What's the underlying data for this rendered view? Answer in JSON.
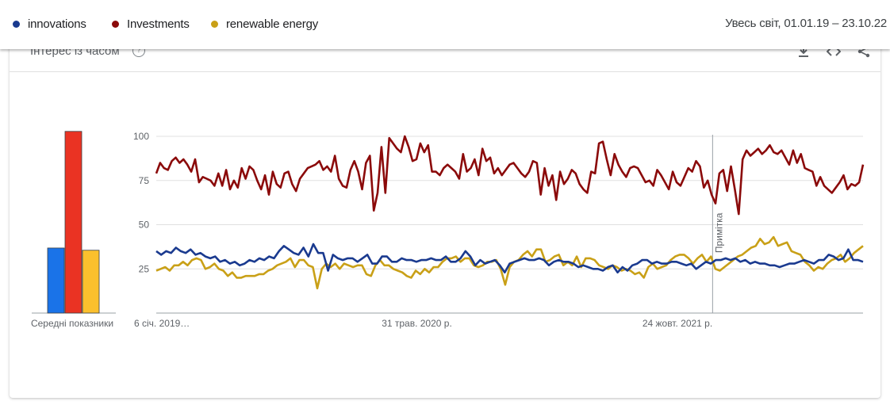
{
  "legend": {
    "items": [
      {
        "label": "innovations",
        "color": "#1a3a8f"
      },
      {
        "label": "Investments",
        "color": "#8b0a0a"
      },
      {
        "label": "renewable energy",
        "color": "#c9a017"
      }
    ],
    "range_label": "Увесь світ, 01.01.19 – 23.10.22"
  },
  "card": {
    "title": "Інтерес із часом",
    "help_icon": "help-circle-icon",
    "header_icons": [
      "download-icon",
      "embed-icon",
      "share-icon"
    ]
  },
  "chart_data": [
    {
      "type": "bar",
      "title": "",
      "xlabel": "Середні показники",
      "categories": [
        "innovations",
        "Investments",
        "renewable energy"
      ],
      "values": [
        29,
        81,
        28
      ],
      "colors": [
        "#1a73e8",
        "#ea3323",
        "#fbc02d"
      ],
      "ylim": [
        0,
        100
      ]
    },
    {
      "type": "line",
      "title": "",
      "xlabel": "",
      "ylabel": "",
      "ylim": [
        0,
        100
      ],
      "yticks": [
        25,
        50,
        75,
        100
      ],
      "grid": true,
      "x_range": [
        "2019-01-06",
        "2022-10-23"
      ],
      "x_tick_labels": [
        {
          "date": "2019-01-06",
          "label": "6 січ. 2019…"
        },
        {
          "date": "2020-05-31",
          "label": "31 трав. 2020 р."
        },
        {
          "date": "2021-10-24",
          "label": "24 жовт. 2021 р."
        }
      ],
      "annotation": {
        "date": "2022-01-01",
        "label": "Примітка"
      },
      "series": [
        {
          "name": "innovations",
          "color": "#1a3a8f",
          "values": [
            35,
            33,
            35,
            34,
            37,
            35,
            34,
            36,
            33,
            34,
            32,
            31,
            32,
            29,
            30,
            28,
            29,
            27,
            28,
            30,
            29,
            31,
            30,
            32,
            31,
            35,
            38,
            36,
            34,
            33,
            37,
            32,
            39,
            34,
            34,
            24,
            33,
            31,
            30,
            31,
            31,
            29,
            31,
            33,
            28,
            28,
            32,
            32,
            29,
            29,
            31,
            30,
            30,
            29,
            30,
            30,
            31,
            30,
            30,
            32,
            29,
            29,
            31,
            35,
            32,
            27,
            30,
            28,
            29,
            30,
            27,
            23,
            28,
            29,
            30,
            31,
            30,
            30,
            31,
            30,
            27,
            29,
            30,
            29,
            29,
            28,
            26,
            27,
            26,
            25,
            25,
            24,
            26,
            27,
            23,
            26,
            24,
            27,
            28,
            30,
            30,
            28,
            29,
            28,
            28,
            29,
            29,
            28,
            27,
            28,
            25,
            27,
            29,
            28,
            30,
            30,
            31,
            30,
            31,
            29,
            30,
            28,
            29,
            28,
            28,
            27,
            27,
            26,
            27,
            28,
            28,
            29,
            30,
            29,
            28,
            30,
            30,
            33,
            32,
            30,
            31,
            36,
            30,
            30,
            29
          ]
        },
        {
          "name": "Investments",
          "color": "#8b0a0a",
          "values": [
            79,
            85,
            82,
            81,
            86,
            88,
            85,
            87,
            84,
            80,
            87,
            74,
            77,
            76,
            75,
            72,
            79,
            72,
            81,
            70,
            75,
            71,
            82,
            76,
            83,
            81,
            75,
            70,
            78,
            67,
            80,
            73,
            71,
            79,
            80,
            73,
            69,
            76,
            79,
            82,
            83,
            84,
            86,
            81,
            83,
            80,
            89,
            76,
            72,
            71,
            81,
            86,
            80,
            70,
            85,
            89,
            58,
            68,
            94,
            68,
            99,
            96,
            93,
            91,
            100,
            94,
            86,
            87,
            96,
            91,
            95,
            80,
            80,
            78,
            82,
            84,
            82,
            80,
            76,
            90,
            80,
            82,
            87,
            78,
            93,
            86,
            88,
            79,
            82,
            78,
            81,
            84,
            85,
            82,
            79,
            77,
            80,
            86,
            85,
            67,
            82,
            72,
            78,
            64,
            80,
            73,
            76,
            81,
            79,
            73,
            70,
            68,
            80,
            79,
            96,
            97,
            87,
            78,
            90,
            84,
            80,
            77,
            82,
            83,
            82,
            78,
            74,
            75,
            72,
            81,
            78,
            74,
            70,
            80,
            74,
            72,
            77,
            82,
            80,
            86,
            83,
            71,
            75,
            67,
            62,
            79,
            81,
            69,
            83,
            70,
            56,
            87,
            92,
            89,
            91,
            93,
            90,
            92,
            95,
            91,
            90,
            92,
            88,
            84,
            92,
            85,
            90,
            82,
            81,
            80,
            72,
            77,
            72,
            70,
            68,
            71,
            74,
            78,
            70,
            73,
            72,
            74,
            84
          ]
        },
        {
          "name": "renewable energy",
          "color": "#c9a017",
          "values": [
            24,
            25,
            26,
            24,
            27,
            27,
            29,
            27,
            30,
            31,
            30,
            25,
            26,
            28,
            25,
            24,
            21,
            23,
            20,
            20,
            21,
            21,
            21,
            22,
            22,
            24,
            25,
            27,
            28,
            29,
            31,
            26,
            30,
            30,
            27,
            26,
            14,
            25,
            28,
            26,
            28,
            25,
            28,
            27,
            26,
            27,
            27,
            22,
            21,
            27,
            30,
            27,
            27,
            25,
            24,
            23,
            21,
            20,
            24,
            22,
            25,
            23,
            26,
            26,
            29,
            31,
            31,
            32,
            29,
            31,
            31,
            27,
            26,
            27,
            29,
            29,
            30,
            25,
            16,
            26,
            29,
            30,
            33,
            35,
            32,
            36,
            36,
            29,
            30,
            32,
            33,
            27,
            29,
            27,
            32,
            26,
            31,
            31,
            30,
            27,
            26,
            25,
            27,
            26,
            24,
            25,
            24,
            22,
            23,
            20,
            26,
            28,
            25,
            26,
            27,
            30,
            32,
            33,
            33,
            31,
            28,
            31,
            33,
            29,
            32,
            25,
            24,
            26,
            28,
            30,
            32,
            33,
            35,
            37,
            38,
            42,
            39,
            40,
            43,
            38,
            39,
            40,
            35,
            34,
            33,
            29,
            27,
            24,
            26,
            25,
            28,
            30,
            31,
            33,
            29,
            31,
            34,
            36,
            38
          ]
        }
      ]
    }
  ]
}
